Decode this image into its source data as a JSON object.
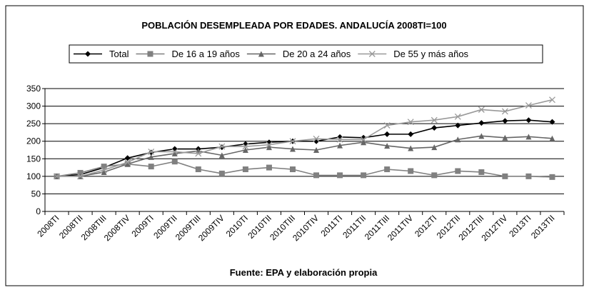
{
  "chart_data": {
    "type": "line",
    "title": "POBLACIÓN DESEMPLEADA POR EDADES. ANDALUCÍA 2008TI=100",
    "source": "Fuente: EPA y elaboración propia",
    "categories": [
      "2008TI",
      "2008TII",
      "2008TIII",
      "2008TIV",
      "2009TI",
      "2009TII",
      "2009TIII",
      "2009TIV",
      "2010TI",
      "2010TII",
      "2010TIII",
      "2010TIV",
      "2011TI",
      "2011TII",
      "2011TIII",
      "2011TIV",
      "2012TI",
      "2012TII",
      "2012TIII",
      "2012TIV",
      "2013TI",
      "2013TII"
    ],
    "series": [
      {
        "name": "Total",
        "color": "#000000",
        "marker": "diamond",
        "values": [
          100,
          105,
          125,
          152,
          168,
          178,
          178,
          183,
          192,
          197,
          200,
          200,
          212,
          210,
          220,
          220,
          238,
          245,
          252,
          258,
          260,
          255
        ]
      },
      {
        "name": "De 16 a 19 años",
        "color": "#808080",
        "marker": "square",
        "values": [
          100,
          110,
          128,
          135,
          128,
          142,
          120,
          108,
          120,
          125,
          120,
          103,
          103,
          103,
          120,
          115,
          103,
          115,
          112,
          100,
          100,
          98
        ]
      },
      {
        "name": "De 20 a 24 años",
        "color": "#666666",
        "marker": "triangle",
        "values": [
          100,
          100,
          112,
          135,
          155,
          165,
          172,
          160,
          175,
          183,
          178,
          175,
          188,
          197,
          187,
          180,
          183,
          205,
          215,
          210,
          213,
          208
        ]
      },
      {
        "name": "De 55 y más años",
        "color": "#999999",
        "marker": "cross",
        "values": [
          100,
          100,
          118,
          140,
          170,
          170,
          165,
          185,
          185,
          190,
          200,
          207,
          205,
          205,
          245,
          255,
          260,
          270,
          290,
          285,
          302,
          318
        ]
      }
    ],
    "ylim": [
      0,
      350
    ],
    "yticks": [
      0,
      50,
      100,
      150,
      200,
      250,
      300,
      350
    ],
    "grid": true,
    "legend": "top"
  }
}
